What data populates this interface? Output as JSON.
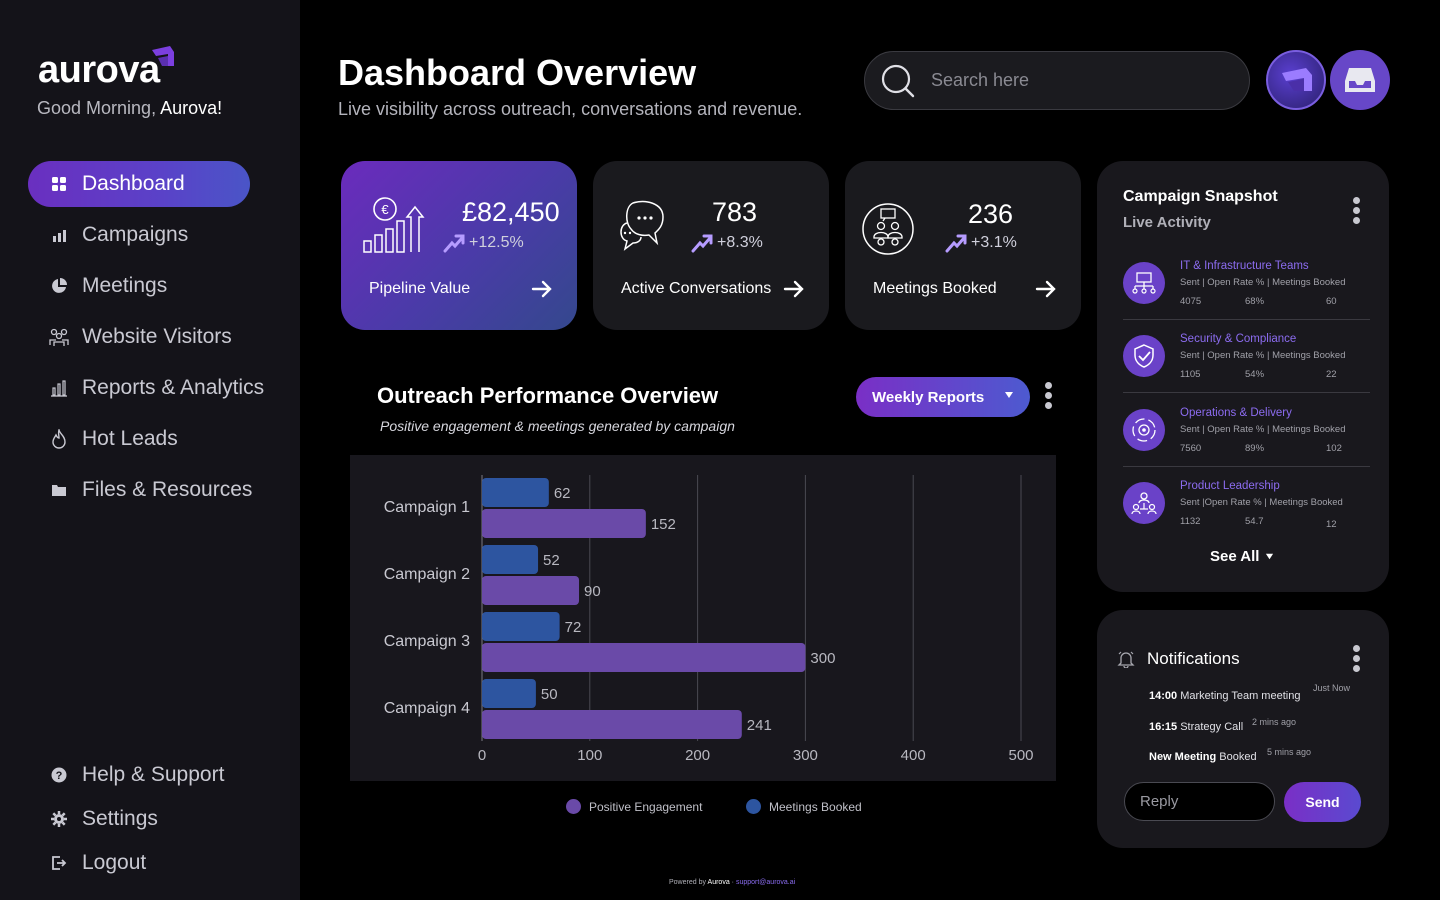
{
  "sidebar": {
    "logo": "aurova",
    "greeting_prefix": "Good Morning, ",
    "greeting_name": "Aurova!",
    "items": [
      {
        "label": "Dashboard",
        "icon": "grid-icon"
      },
      {
        "label": "Campaigns",
        "icon": "bar-chart-icon"
      },
      {
        "label": "Meetings",
        "icon": "pie-chart-icon"
      },
      {
        "label": "Website Visitors",
        "icon": "visitors-icon"
      },
      {
        "label": "Reports & Analytics",
        "icon": "reports-icon"
      },
      {
        "label": "Hot Leads",
        "icon": "flame-icon"
      },
      {
        "label": "Files & Resources",
        "icon": "folder-icon"
      }
    ],
    "bottom_items": [
      {
        "label": "Help & Support",
        "icon": "help-icon"
      },
      {
        "label": "Settings",
        "icon": "gear-icon"
      },
      {
        "label": "Logout",
        "icon": "logout-icon"
      }
    ]
  },
  "header": {
    "title": "Dashboard Overview",
    "subtitle": "Live visibility across outreach, conversations and revenue.",
    "search_placeholder": "Search here"
  },
  "kpis": [
    {
      "value": "£82,450",
      "change": "+12.5%",
      "label": "Pipeline Value"
    },
    {
      "value": "783",
      "change": "+8.3%",
      "label": "Active Conversations"
    },
    {
      "value": "236",
      "change": "+3.1%",
      "label": "Meetings Booked"
    }
  ],
  "chart_panel": {
    "title": "Outreach Performance Overview",
    "subtitle": "Positive engagement & meetings generated by campaign",
    "dropdown_label": "Weekly Reports"
  },
  "chart_data": {
    "type": "bar",
    "orientation": "horizontal",
    "categories": [
      "Campaign 1",
      "Campaign 2",
      "Campaign 3",
      "Campaign 4"
    ],
    "series": [
      {
        "name": "Meetings Booked",
        "values": [
          62,
          52,
          72,
          50
        ],
        "color": "#2d55a0"
      },
      {
        "name": "Positive Engagement",
        "values": [
          152,
          90,
          300,
          241
        ],
        "color": "#6a4aa8"
      }
    ],
    "xlim": [
      0,
      500
    ],
    "xticks": [
      0,
      100,
      200,
      300,
      400,
      500
    ],
    "legend": [
      "Positive Engagement",
      "Meetings Booked"
    ],
    "legend_colors": [
      "#6a4aa8",
      "#2d55a0"
    ]
  },
  "snapshot": {
    "title": "Campaign Snapshot",
    "subtitle": "Live Activity",
    "meta_label": "Sent | Open Rate % | Meetings Booked",
    "items": [
      {
        "name": "IT & Infrastructure Teams",
        "meta": "Sent | Open Rate % | Meetings Booked",
        "sent": "4075",
        "open": "68%",
        "meetings": "60"
      },
      {
        "name": "Security & Compliance",
        "meta": "Sent | Open Rate % | Meetings Booked",
        "sent": "1105",
        "open": "54%",
        "meetings": "22"
      },
      {
        "name": "Operations & Delivery",
        "meta": "Sent | Open Rate % | Meetings Booked",
        "sent": "7560",
        "open": "89%",
        "meetings": "102"
      },
      {
        "name": "Product Leadership",
        "meta": "Sent |Open Rate % | Meetings Booked",
        "sent": "1132",
        "open": "54.7",
        "meetings": "12"
      }
    ],
    "see_all": "See All"
  },
  "notifications": {
    "title": "Notifications",
    "items": [
      {
        "time": "14:00",
        "text": " Marketing Team meeting",
        "ago": "Just Now"
      },
      {
        "time": "16:15",
        "text": " Strategy Call",
        "ago": "2 mins ago"
      },
      {
        "time": "New Meeting",
        "text": " Booked",
        "ago": "5 mins ago"
      }
    ],
    "reply_placeholder": "Reply",
    "send_label": "Send"
  },
  "footer": {
    "prefix": "Powered by ",
    "brand": "Aurova",
    "sep": " · ",
    "email": "support@aurova.ai"
  }
}
